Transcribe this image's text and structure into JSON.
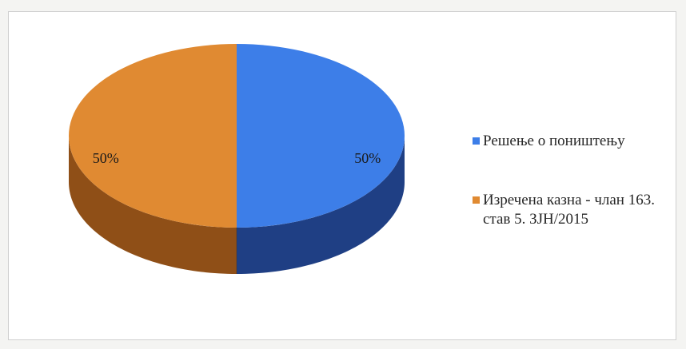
{
  "chart_data": {
    "type": "pie",
    "title": "",
    "categories": [
      "Решење о поништењу",
      "Изречена казна - члан 163. став 5. ЗЈН/2015"
    ],
    "values": [
      50,
      50
    ],
    "data_labels": [
      "50%",
      "50%"
    ],
    "colors": [
      "#3d7ee8",
      "#e08a32"
    ],
    "side_colors": [
      "#1f3f84",
      "#8f4f17"
    ],
    "legend_position": "right",
    "style": "3d"
  },
  "legend": {
    "items": [
      {
        "label": "Решење о поништењу",
        "color": "#3d7ee8"
      },
      {
        "label": "Изречена казна - члан 163. став 5. ЗЈН/2015",
        "color": "#e08a32"
      }
    ]
  }
}
